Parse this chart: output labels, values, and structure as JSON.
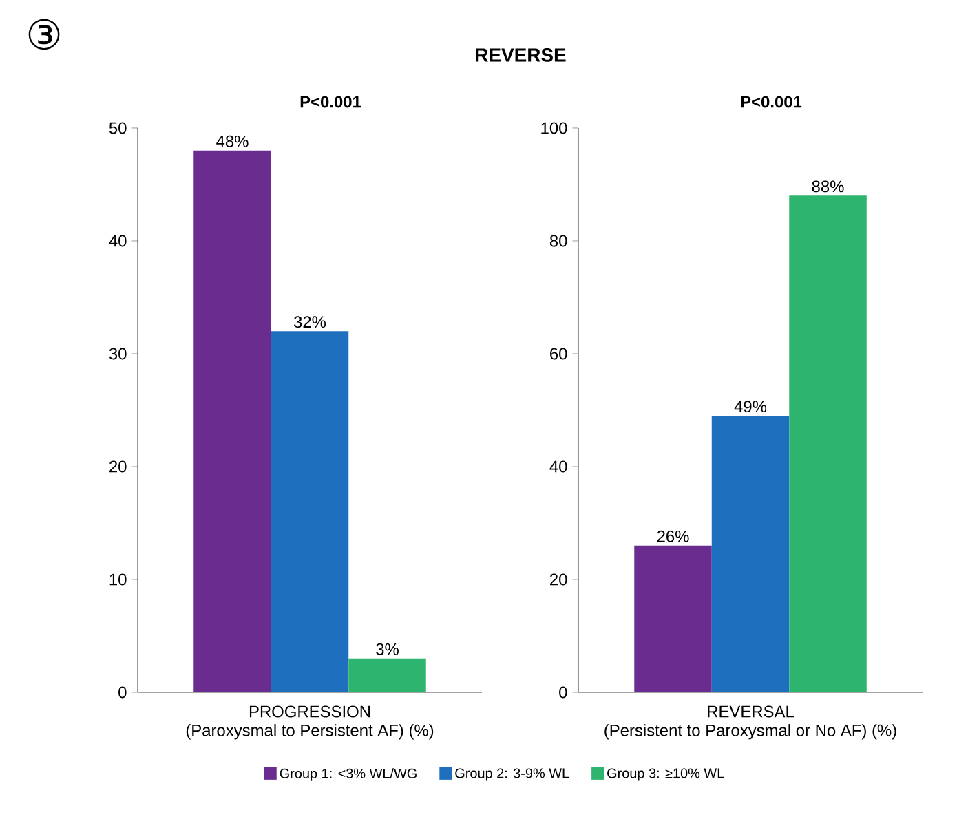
{
  "chart_data": [
    {
      "type": "bar",
      "title": "REVERSE",
      "annotations": [
        "③",
        "P<0.001"
      ],
      "categories": [
        "PROGRESSION"
      ],
      "xlabel": "(Paroxysmal to Persistent AF) (%)",
      "ylim": [
        0,
        50
      ],
      "yticks": [
        0,
        10,
        20,
        30,
        40,
        50
      ],
      "legend": "bottom",
      "series": [
        {
          "name": "Group 1: <3% WL/WG",
          "color": "#6a2c8e",
          "values": [
            48
          ],
          "value_labels": [
            "48%"
          ]
        },
        {
          "name": "Group 2: 3-9% WL",
          "color": "#1f6fbf",
          "values": [
            32
          ],
          "value_labels": [
            "32%"
          ]
        },
        {
          "name": "Group 3: ≥10% WL",
          "color": "#2db46e",
          "values": [
            3
          ],
          "value_labels": [
            "3%"
          ]
        }
      ]
    },
    {
      "type": "bar",
      "annotations": [
        "P<0.001"
      ],
      "categories": [
        "REVERSAL"
      ],
      "xlabel": "(Persistent to Paroxysmal or No AF) (%)",
      "ylim": [
        0,
        100
      ],
      "yticks": [
        0,
        20,
        40,
        60,
        80,
        100
      ],
      "series": [
        {
          "color": "#6a2c8e",
          "values": [
            26
          ],
          "value_labels": [
            "26%"
          ]
        },
        {
          "color": "#1f6fbf",
          "values": [
            49
          ],
          "value_labels": [
            "49%"
          ]
        },
        {
          "color": "#2db46e",
          "values": [
            88
          ],
          "value_labels": [
            "88%"
          ]
        }
      ]
    }
  ]
}
